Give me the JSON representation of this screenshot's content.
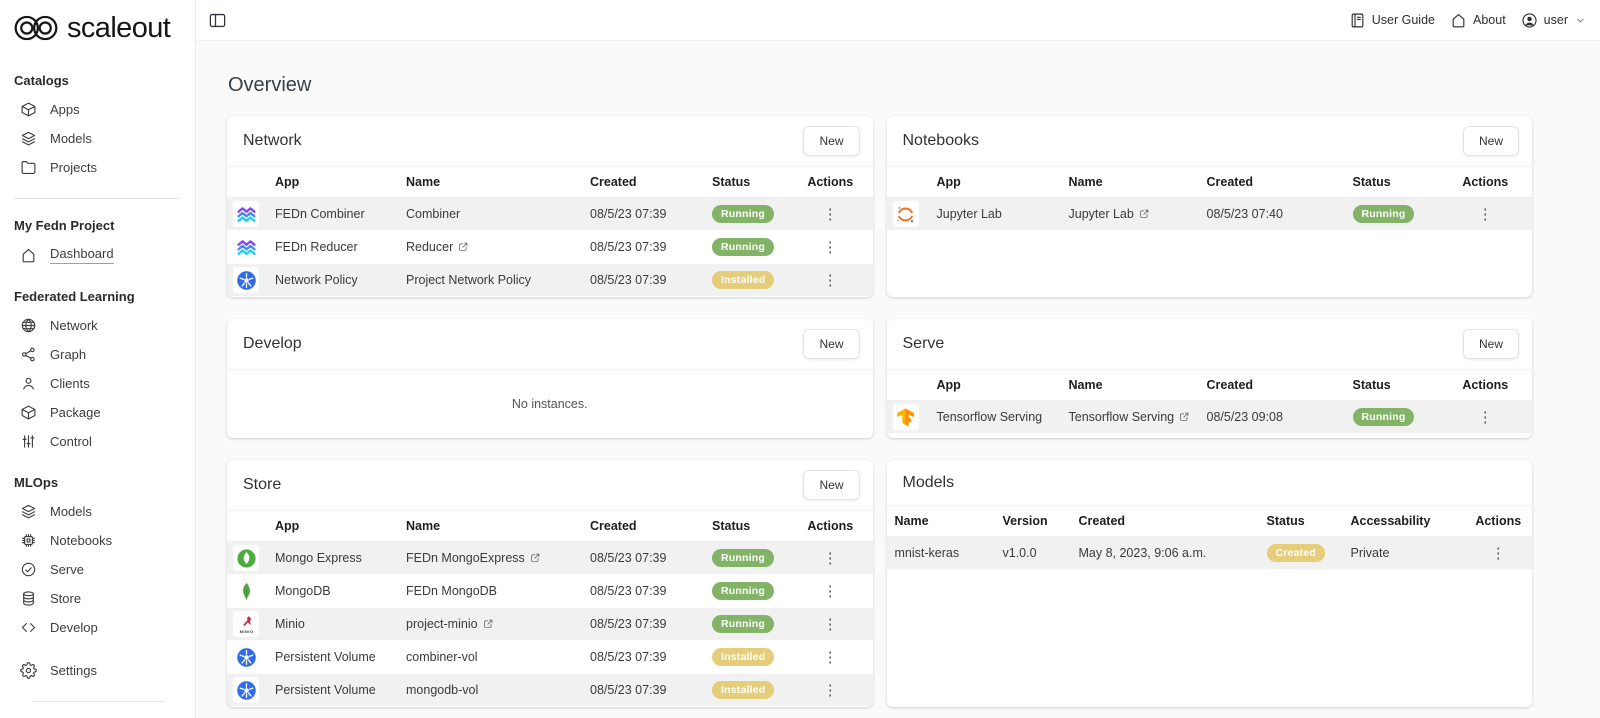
{
  "brand": {
    "name": "scaleout"
  },
  "header": {
    "links": [
      {
        "label": "User Guide",
        "icon": "book"
      },
      {
        "label": "About",
        "icon": "home"
      },
      {
        "label": "user",
        "icon": "avatar",
        "caret": true
      }
    ]
  },
  "sidebar": {
    "sections": [
      {
        "title": "Catalogs",
        "divider_after": true,
        "items": [
          {
            "label": "Apps",
            "icon": "cube"
          },
          {
            "label": "Models",
            "icon": "layers"
          },
          {
            "label": "Projects",
            "icon": "folder"
          }
        ]
      },
      {
        "title": "My Fedn Project",
        "items": [
          {
            "label": "Dashboard",
            "icon": "home",
            "active": true
          }
        ]
      },
      {
        "title": "Federated Learning",
        "items": [
          {
            "label": "Network",
            "icon": "globe"
          },
          {
            "label": "Graph",
            "icon": "share"
          },
          {
            "label": "Clients",
            "icon": "person"
          },
          {
            "label": "Package",
            "icon": "cube"
          },
          {
            "label": "Control",
            "icon": "sliders"
          }
        ]
      },
      {
        "title": "MLOps",
        "items": [
          {
            "label": "Models",
            "icon": "layers"
          },
          {
            "label": "Notebooks",
            "icon": "chip"
          },
          {
            "label": "Serve",
            "icon": "check-circle"
          },
          {
            "label": "Store",
            "icon": "database"
          },
          {
            "label": "Develop",
            "icon": "code"
          }
        ]
      },
      {
        "title": "",
        "gap_before": true,
        "divider_after": true,
        "items": [
          {
            "label": "Settings",
            "icon": "gear"
          }
        ]
      }
    ]
  },
  "page": {
    "title": "Overview"
  },
  "cards": {
    "network": {
      "title": "Network",
      "new_label": "New",
      "columns": [
        "App",
        "Name",
        "Created",
        "Status",
        "Actions"
      ],
      "rows": [
        {
          "icon": "fedn",
          "app": "FEDn Combiner",
          "name": "Combiner",
          "external": false,
          "created": "08/5/23 07:39",
          "status": "Running"
        },
        {
          "icon": "fedn",
          "app": "FEDn Reducer",
          "name": "Reducer",
          "external": true,
          "created": "08/5/23 07:39",
          "status": "Running"
        },
        {
          "icon": "kubernetes",
          "app": "Network Policy",
          "name": "Project Network Policy",
          "external": false,
          "created": "08/5/23 07:39",
          "status": "Installed"
        }
      ]
    },
    "notebooks": {
      "title": "Notebooks",
      "new_label": "New",
      "columns": [
        "App",
        "Name",
        "Created",
        "Status",
        "Actions"
      ],
      "rows": [
        {
          "icon": "jupyter",
          "app": "Jupyter Lab",
          "name": "Jupyter Lab",
          "external": true,
          "created": "08/5/23 07:40",
          "status": "Running"
        }
      ]
    },
    "develop": {
      "title": "Develop",
      "new_label": "New",
      "empty_text": "No instances."
    },
    "serve": {
      "title": "Serve",
      "new_label": "New",
      "columns": [
        "App",
        "Name",
        "Created",
        "Status",
        "Actions"
      ],
      "rows": [
        {
          "icon": "tensorflow",
          "app": "Tensorflow Serving",
          "name": "Tensorflow Serving",
          "external": true,
          "created": "08/5/23 09:08",
          "status": "Running"
        }
      ]
    },
    "store": {
      "title": "Store",
      "new_label": "New",
      "columns": [
        "App",
        "Name",
        "Created",
        "Status",
        "Actions"
      ],
      "rows": [
        {
          "icon": "mongo-express",
          "app": "Mongo Express",
          "name": "FEDn MongoExpress",
          "external": true,
          "created": "08/5/23 07:39",
          "status": "Running"
        },
        {
          "icon": "mongodb",
          "app": "MongoDB",
          "name": "FEDn MongoDB",
          "external": false,
          "created": "08/5/23 07:39",
          "status": "Running"
        },
        {
          "icon": "minio",
          "app": "Minio",
          "name": "project-minio",
          "external": true,
          "created": "08/5/23 07:39",
          "status": "Running"
        },
        {
          "icon": "kubernetes",
          "app": "Persistent Volume",
          "name": "combiner-vol",
          "external": false,
          "created": "08/5/23 07:39",
          "status": "Installed"
        },
        {
          "icon": "kubernetes",
          "app": "Persistent Volume",
          "name": "mongodb-vol",
          "external": false,
          "created": "08/5/23 07:39",
          "status": "Installed"
        }
      ]
    },
    "models": {
      "title": "Models",
      "columns": [
        "Name",
        "Version",
        "Created",
        "Status",
        "Accessability",
        "Actions"
      ],
      "rows": [
        {
          "name": "mnist-keras",
          "version": "v1.0.0",
          "created": "May 8, 2023, 9:06 a.m.",
          "status": "Created",
          "accessability": "Private"
        }
      ]
    }
  },
  "status_colors": {
    "Running": "#82b366",
    "Installed": "#e5cd7a",
    "Created": "#e5cd7a"
  },
  "icon_colors": {
    "kubernetes": "#326ce5",
    "jupyter": "#f37726",
    "mongo": "#4faa41",
    "tensorflow": "#ff8f00",
    "tensorflow_light": "#ffb300",
    "minio": "#c72c48",
    "fedn_top": "#8145f5",
    "fedn_mid": "#3d8df5",
    "fedn_bottom": "#1fd0f5"
  },
  "minio_label": "MINIO"
}
